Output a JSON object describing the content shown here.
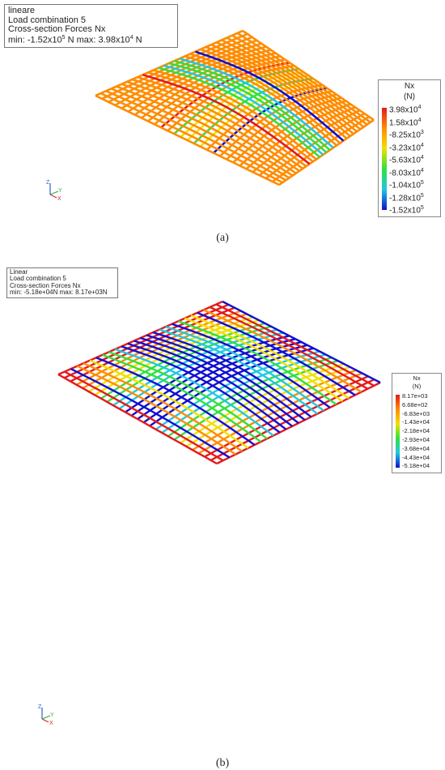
{
  "panel_a": {
    "info_lines": [
      "lineare",
      "Load combination 5",
      "Cross-section Forces Nx"
    ],
    "info_min_label": "min: -1.52",
    "info_min_mant": "x10",
    "info_min_exp": "5",
    "info_min_unit": " N max: 3.98",
    "info_max_mant": "x10",
    "info_max_exp": "4",
    "info_max_unit": " N",
    "legend_title": "Nx",
    "legend_unit": "(N)",
    "legend_ticks": [
      "3.98x10^4",
      "1.58x10^4",
      "-8.25x10^3",
      "-3.23x10^4",
      "-5.63x10^4",
      "-8.03x10^4",
      "-1.04x10^5",
      "-1.28x10^5",
      "-1.52x10^5"
    ],
    "caption": "(a)",
    "triad": {
      "z": "Z",
      "y": "Y",
      "x": "X"
    }
  },
  "panel_b": {
    "info_lines": [
      "Linear",
      "Load combination 5",
      "Cross-section Forces Nx",
      "min: -5.18e+04N max: 8.17e+03N"
    ],
    "legend_title": "Nx",
    "legend_unit": "(N)",
    "legend_ticks": [
      "8.17e+03",
      "6.68e+02",
      "-6.83e+03",
      "-1.43e+04",
      "-2.18e+04",
      "-2.93e+04",
      "-3.68e+04",
      "-4.43e+04",
      "-5.18e+04"
    ],
    "caption": "(b)",
    "triad": {
      "z": "Z",
      "y": "Y",
      "x": "X"
    }
  },
  "colors": {
    "red": "#e41a1c",
    "orange": "#ff8c00",
    "yellow": "#f0e000",
    "green": "#30e040",
    "cyan": "#20c8e0",
    "blue": "#1010d0"
  }
}
